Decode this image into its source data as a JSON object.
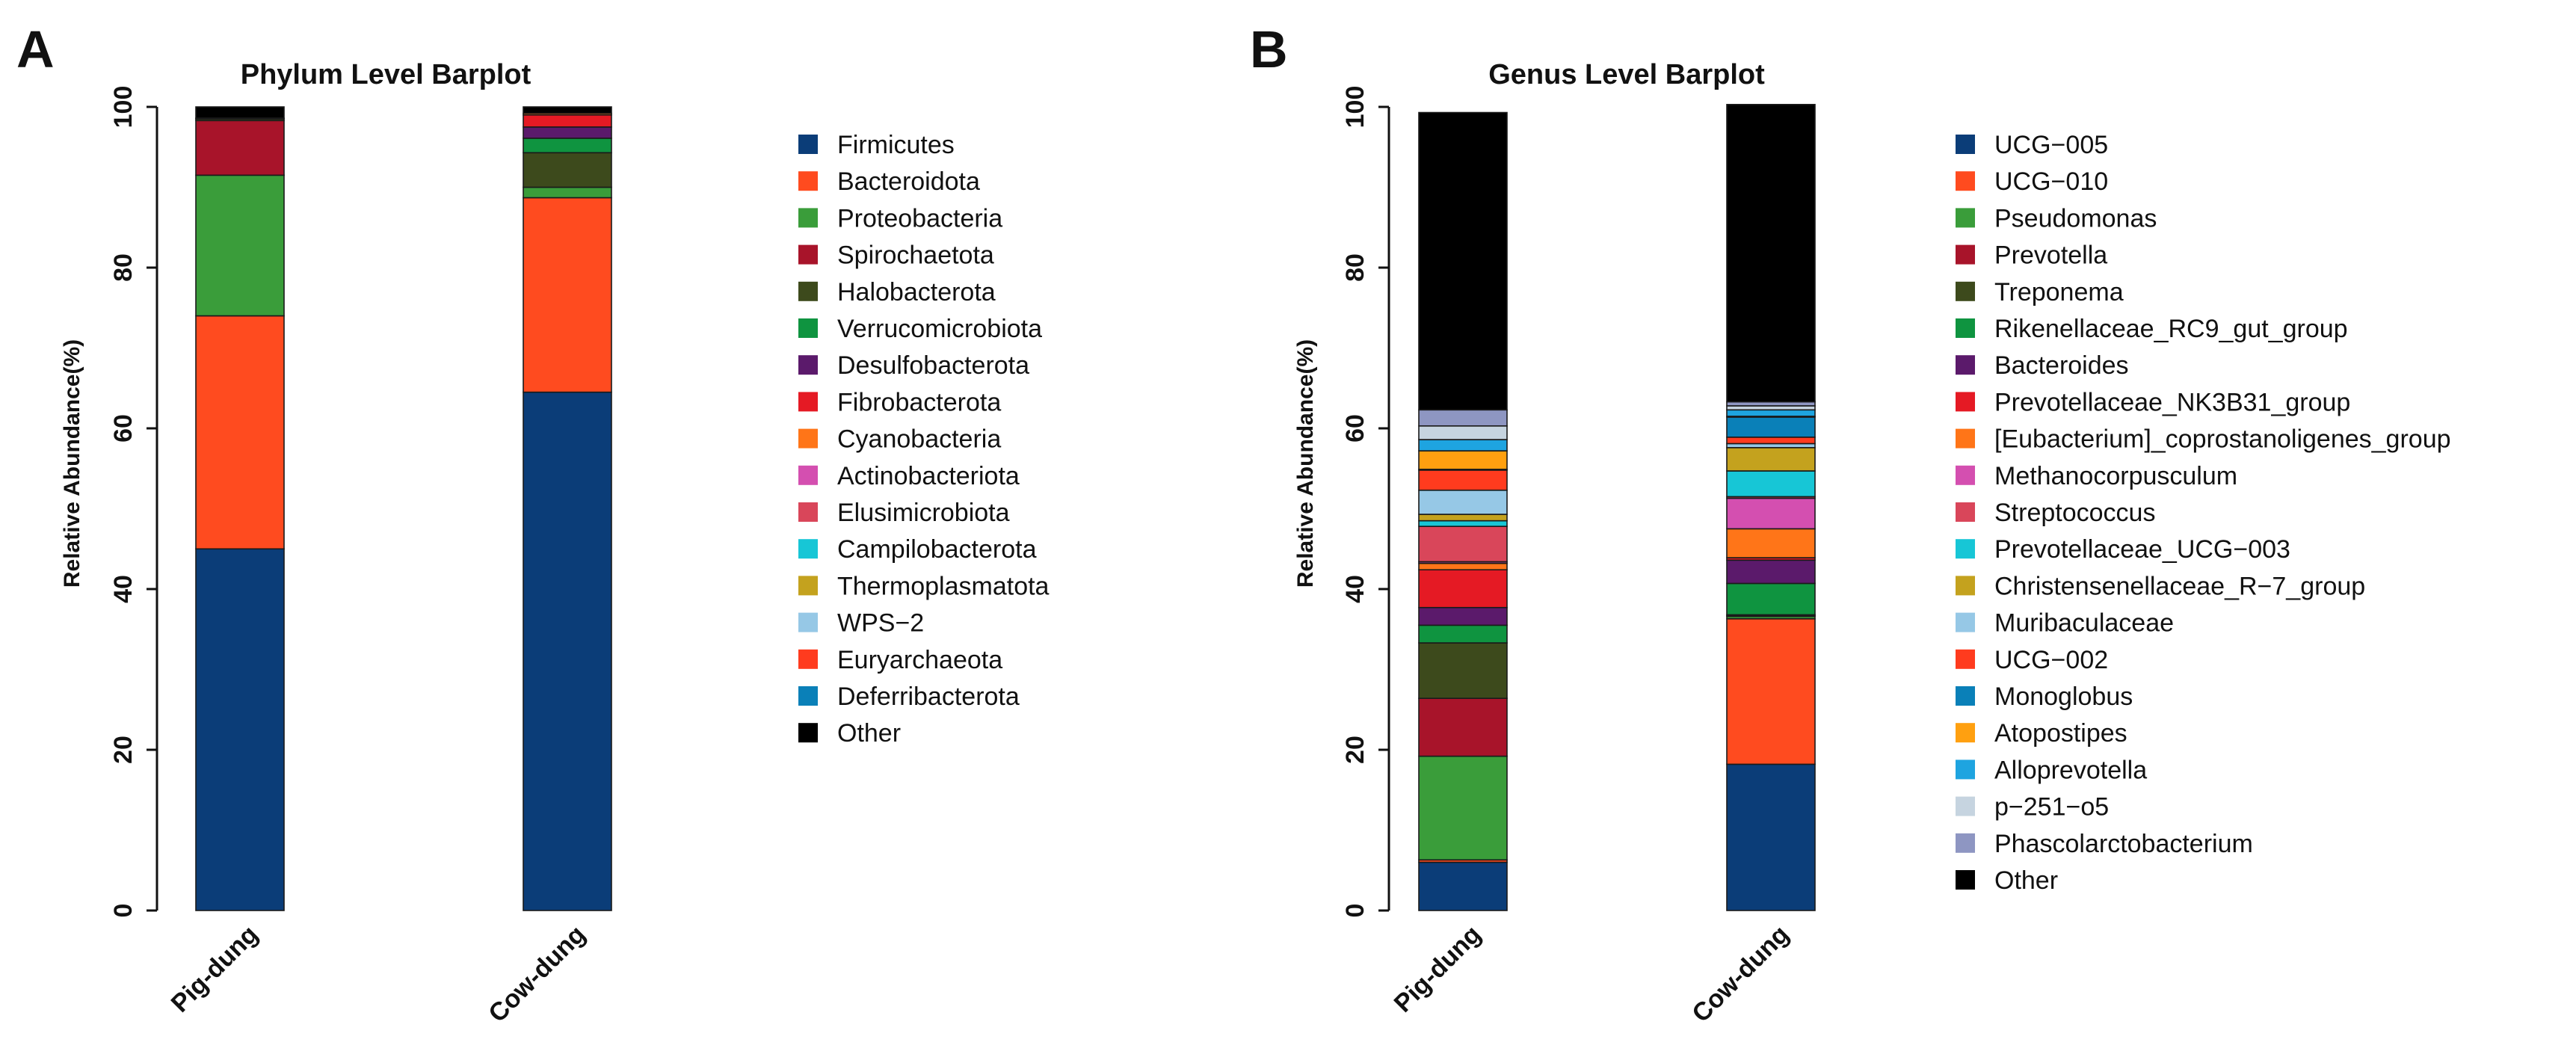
{
  "panels": [
    {
      "letter": "A",
      "chart_data": {
        "type": "bar",
        "stacked": true,
        "title": "Phylum Level Barplot",
        "xlabel": "",
        "ylabel": "Relative Abundance(%)",
        "ylim": [
          0,
          100
        ],
        "yticks": [
          "0",
          "20",
          "40",
          "60",
          "80",
          "100"
        ],
        "categories": [
          "Pig-dung",
          "Cow-dung"
        ],
        "legend_position": "right",
        "series": [
          {
            "name": "Firmicutes",
            "color": "#0b3d78",
            "values": [
              45.0,
              64.5
            ]
          },
          {
            "name": "Bacteroidota",
            "color": "#ff4b1f",
            "values": [
              29.0,
              24.2
            ]
          },
          {
            "name": "Proteobacteria",
            "color": "#3a9d3a",
            "values": [
              17.5,
              1.3
            ]
          },
          {
            "name": "Spirochaetota",
            "color": "#a8142a",
            "values": [
              6.8,
              0.0
            ]
          },
          {
            "name": "Halobacterota",
            "color": "#3d4a1c",
            "values": [
              0.2,
              4.3
            ]
          },
          {
            "name": "Verrucomicrobiota",
            "color": "#0f9440",
            "values": [
              0.1,
              1.8
            ]
          },
          {
            "name": "Desulfobacterota",
            "color": "#5b1a6b",
            "values": [
              0.0,
              1.4
            ]
          },
          {
            "name": "Fibrobacterota",
            "color": "#e51a24",
            "values": [
              0.0,
              1.5
            ]
          },
          {
            "name": "Cyanobacteria",
            "color": "#ff7518",
            "values": [
              0.0,
              0.2
            ]
          },
          {
            "name": "Actinobacteriota",
            "color": "#d44fb0",
            "values": [
              0.0,
              0.0
            ]
          },
          {
            "name": "Elusimicrobiota",
            "color": "#d9465a",
            "values": [
              0.0,
              0.0
            ]
          },
          {
            "name": "Campilobacterota",
            "color": "#17c6d6",
            "values": [
              0.0,
              0.0
            ]
          },
          {
            "name": "Thermoplasmatota",
            "color": "#c4a21e",
            "values": [
              0.0,
              0.0
            ]
          },
          {
            "name": "WPS−2",
            "color": "#96c8e6",
            "values": [
              0.0,
              0.0
            ]
          },
          {
            "name": "Euryarchaeota",
            "color": "#ff3b1e",
            "values": [
              0.0,
              0.0
            ]
          },
          {
            "name": "Deferribacterota",
            "color": "#0a80b8",
            "values": [
              0.0,
              0.0
            ]
          },
          {
            "name": "Other",
            "color": "#000000",
            "values": [
              1.4,
              0.8
            ]
          }
        ]
      }
    },
    {
      "letter": "B",
      "chart_data": {
        "type": "bar",
        "stacked": true,
        "title": "Genus Level Barplot",
        "xlabel": "",
        "ylabel": "Relative Abundance(%)",
        "ylim": [
          0,
          100
        ],
        "yticks": [
          "0",
          "20",
          "40",
          "60",
          "80",
          "100"
        ],
        "categories": [
          "Pig-dung",
          "Cow-dung"
        ],
        "legend_position": "right",
        "series": [
          {
            "name": "UCG−005",
            "color": "#0b3d78",
            "values": [
              6.0,
              18.2
            ]
          },
          {
            "name": "UCG−010",
            "color": "#ff4b1f",
            "values": [
              0.3,
              18.1
            ]
          },
          {
            "name": "Pseudomonas",
            "color": "#3a9d3a",
            "values": [
              12.9,
              0.3
            ]
          },
          {
            "name": "Prevotella",
            "color": "#a8142a",
            "values": [
              7.2,
              0.1
            ]
          },
          {
            "name": "Treponema",
            "color": "#3d4a1c",
            "values": [
              6.9,
              0.1
            ]
          },
          {
            "name": "Rikenellaceae_RC9_gut_group",
            "color": "#0f9440",
            "values": [
              2.2,
              3.9
            ]
          },
          {
            "name": "Bacteroides",
            "color": "#5b1a6b",
            "values": [
              2.2,
              2.9
            ]
          },
          {
            "name": "Prevotellaceae_NK3B31_group",
            "color": "#e51a24",
            "values": [
              4.7,
              0.3
            ]
          },
          {
            "name": "[Eubacterium]_coprostanoligenes_group",
            "color": "#ff7518",
            "values": [
              0.8,
              3.6
            ]
          },
          {
            "name": "Methanocorpusculum",
            "color": "#d44fb0",
            "values": [
              0.2,
              3.8
            ]
          },
          {
            "name": "Streptococcus",
            "color": "#d9465a",
            "values": [
              4.4,
              0.2
            ]
          },
          {
            "name": "Prevotellaceae_UCG−003",
            "color": "#17c6d6",
            "values": [
              0.7,
              3.2
            ]
          },
          {
            "name": "Christensenellaceae_R−7_group",
            "color": "#c4a21e",
            "values": [
              0.8,
              2.9
            ]
          },
          {
            "name": "Muribaculaceae",
            "color": "#96c8e6",
            "values": [
              3.0,
              0.5
            ]
          },
          {
            "name": "UCG−002",
            "color": "#ff3b1e",
            "values": [
              2.5,
              0.8
            ]
          },
          {
            "name": "Monoglobus",
            "color": "#0a80b8",
            "values": [
              0.1,
              2.5
            ]
          },
          {
            "name": "Atopostipes",
            "color": "#ffa010",
            "values": [
              2.3,
              0.1
            ]
          },
          {
            "name": "Alloprevotella",
            "color": "#1ea4e0",
            "values": [
              1.4,
              0.8
            ]
          },
          {
            "name": "p−251−o5",
            "color": "#c6d4e0",
            "values": [
              1.7,
              0.5
            ]
          },
          {
            "name": "Phascolarctobacterium",
            "color": "#8e96c2",
            "values": [
              2.0,
              0.5
            ]
          },
          {
            "name": "Other",
            "color": "#000000",
            "values": [
              37.0,
              37.0
            ]
          }
        ]
      }
    }
  ]
}
